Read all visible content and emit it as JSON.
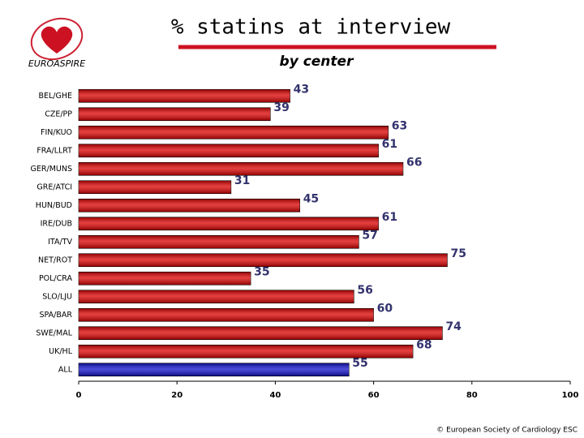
{
  "chart_data": {
    "type": "hbar",
    "title": "% statins at interview",
    "subtitle": "by center",
    "logo_text": "EUROASPIRE",
    "footer": "© European Society of Cardiology ESC",
    "categories": [
      "BEL/GHE",
      "CZE/PP",
      "FIN/KUO",
      "FRA/LLRT",
      "GER/MUNS",
      "GRE/ATCI",
      "HUN/BUD",
      "IRE/DUB",
      "ITA/TV",
      "NET/ROT",
      "POL/CRA",
      "SLO/LJU",
      "SPA/BAR",
      "SWE/MAL",
      "UK/HL",
      "ALL"
    ],
    "values": [
      43,
      39,
      63,
      61,
      66,
      31,
      45,
      61,
      57,
      75,
      35,
      56,
      60,
      74,
      68,
      55
    ],
    "colors": [
      "#dd0000",
      "#dd0000",
      "#dd0000",
      "#dd0000",
      "#dd0000",
      "#dd0000",
      "#dd0000",
      "#dd0000",
      "#dd0000",
      "#dd0000",
      "#dd0000",
      "#dd0000",
      "#dd0000",
      "#dd0000",
      "#dd0000",
      "#1010cc"
    ],
    "xlim": [
      0,
      100
    ],
    "xticks": [
      0,
      20,
      40,
      60,
      80,
      100
    ]
  }
}
